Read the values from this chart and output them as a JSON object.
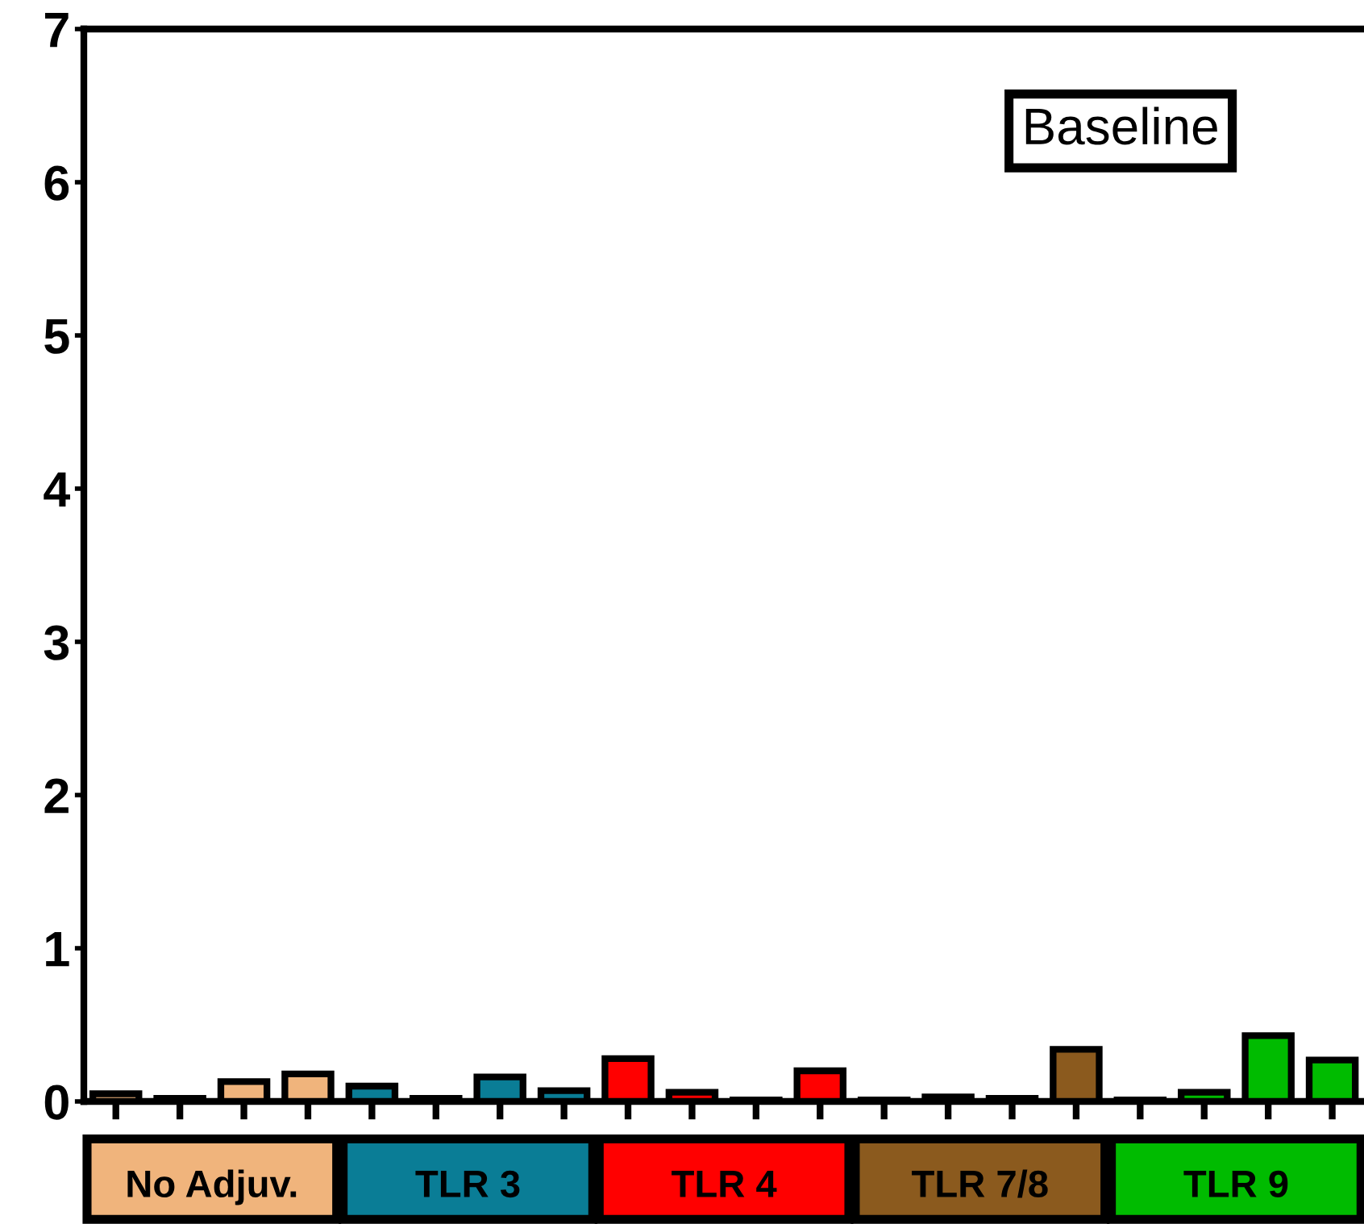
{
  "chart_data": {
    "type": "bar",
    "title": "Baseline",
    "categories": [
      null,
      null,
      null,
      null,
      null,
      null,
      null,
      null,
      null,
      null,
      null,
      null,
      null,
      null,
      null,
      null,
      null,
      null,
      null,
      null
    ],
    "series": [
      {
        "name": "No Adjuv.",
        "color": "#f0b47c",
        "values": [
          0.05,
          0.02,
          0.13,
          0.18,
          null,
          null,
          null,
          null,
          null,
          null,
          null,
          null,
          null,
          null,
          null,
          null,
          null,
          null,
          null,
          null
        ]
      },
      {
        "name": "TLR 3",
        "color": "#0a7d96",
        "values": [
          null,
          null,
          null,
          null,
          0.1,
          0.02,
          0.16,
          0.07,
          null,
          null,
          null,
          null,
          null,
          null,
          null,
          null,
          null,
          null,
          null,
          null
        ]
      },
      {
        "name": "TLR 4",
        "color": "#ff0000",
        "values": [
          null,
          null,
          null,
          null,
          null,
          null,
          null,
          null,
          0.28,
          0.06,
          0.01,
          0.2,
          null,
          null,
          null,
          null,
          null,
          null,
          null,
          null
        ]
      },
      {
        "name": "TLR 7/8",
        "color": "#8b5a1e",
        "values": [
          null,
          null,
          null,
          null,
          null,
          null,
          null,
          null,
          null,
          null,
          null,
          null,
          0.01,
          0.03,
          0.02,
          0.34,
          null,
          null,
          null,
          null
        ]
      },
      {
        "name": "TLR 9",
        "color": "#00bb00",
        "values": [
          null,
          null,
          null,
          null,
          null,
          null,
          null,
          null,
          null,
          null,
          null,
          null,
          null,
          null,
          null,
          null,
          0.01,
          0.06,
          0.43,
          0.27
        ]
      }
    ],
    "ylim": [
      0,
      7
    ],
    "yticks": [
      0,
      1,
      2,
      3,
      4,
      5,
      6,
      7
    ],
    "grid": false,
    "legend": "bottom",
    "tick_labels": "y"
  }
}
